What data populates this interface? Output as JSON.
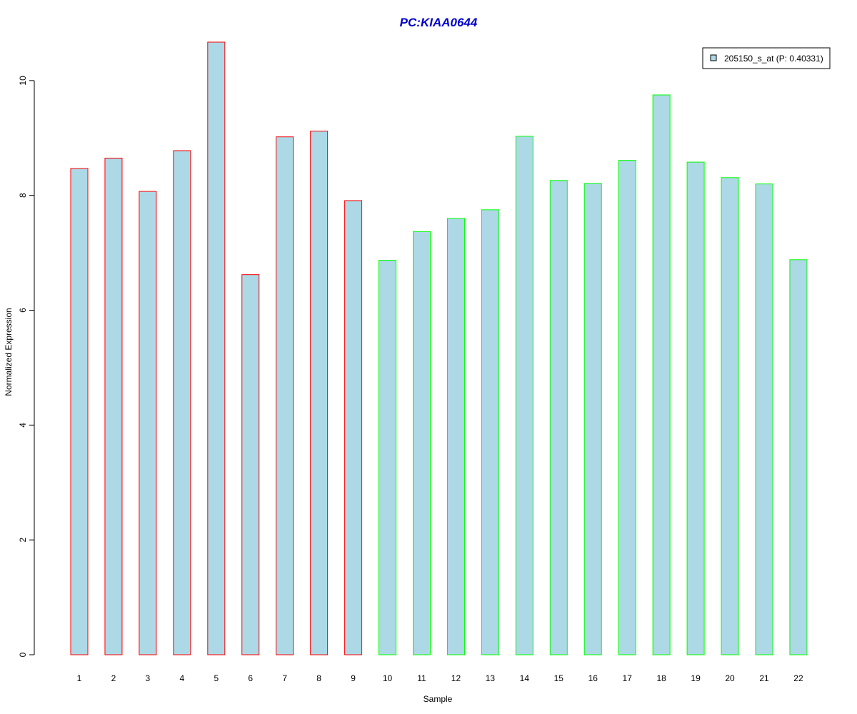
{
  "chart_data": {
    "type": "bar",
    "title": "PC:KIAA0644",
    "xlabel": "Sample",
    "ylabel": "Normalized Expression",
    "categories": [
      "1",
      "2",
      "3",
      "4",
      "5",
      "6",
      "7",
      "8",
      "9",
      "10",
      "11",
      "12",
      "13",
      "14",
      "15",
      "16",
      "17",
      "18",
      "19",
      "20",
      "21",
      "22"
    ],
    "series": [
      {
        "name": "205150_s_at (P: 0.40331)",
        "values": [
          8.47,
          8.65,
          8.07,
          8.78,
          10.67,
          6.62,
          9.02,
          9.12,
          7.91,
          6.87,
          7.37,
          7.6,
          7.75,
          9.03,
          8.26,
          8.21,
          8.61,
          9.75,
          8.58,
          8.31,
          8.2,
          6.88
        ]
      }
    ],
    "groups": [
      1,
      1,
      1,
      1,
      1,
      1,
      1,
      1,
      1,
      2,
      2,
      2,
      2,
      2,
      2,
      2,
      2,
      2,
      2,
      2,
      2,
      2
    ],
    "ylim": [
      0,
      10.67
    ],
    "yticks": [
      0,
      2,
      4,
      6,
      8,
      10
    ],
    "grid": false,
    "legend_position": "top-right",
    "colors": {
      "bar_fill": "#add8e6",
      "group1_border": "#ff0000",
      "group2_border": "#00ff00",
      "title": "#0000cc"
    }
  }
}
